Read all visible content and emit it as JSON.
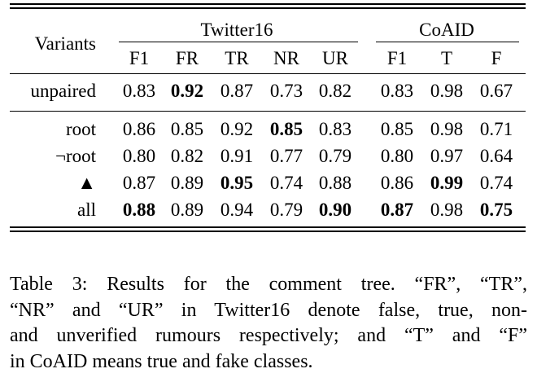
{
  "table": {
    "stub_header": "Variants",
    "groups": [
      {
        "name": "Twitter16",
        "columns": [
          "F1",
          "FR",
          "TR",
          "NR",
          "UR"
        ]
      },
      {
        "name": "CoAID",
        "columns": [
          "F1",
          "T",
          "F"
        ]
      }
    ],
    "sections": [
      [
        {
          "label": "unpaired",
          "values": [
            "0.83",
            "0.92",
            "0.87",
            "0.73",
            "0.82",
            "0.83",
            "0.98",
            "0.67"
          ],
          "bold": [
            false,
            true,
            false,
            false,
            false,
            false,
            false,
            false
          ]
        }
      ],
      [
        {
          "label": "root",
          "values": [
            "0.86",
            "0.85",
            "0.92",
            "0.85",
            "0.83",
            "0.85",
            "0.98",
            "0.71"
          ],
          "bold": [
            false,
            false,
            false,
            true,
            false,
            false,
            false,
            false
          ]
        },
        {
          "label": "¬root",
          "values": [
            "0.80",
            "0.82",
            "0.91",
            "0.77",
            "0.79",
            "0.80",
            "0.97",
            "0.64"
          ],
          "bold": [
            false,
            false,
            false,
            false,
            false,
            false,
            false,
            false
          ]
        },
        {
          "label": "▲",
          "values": [
            "0.87",
            "0.89",
            "0.95",
            "0.74",
            "0.88",
            "0.86",
            "0.99",
            "0.74"
          ],
          "bold": [
            false,
            false,
            true,
            false,
            false,
            false,
            true,
            false
          ]
        },
        {
          "label": "all",
          "values": [
            "0.88",
            "0.89",
            "0.94",
            "0.79",
            "0.90",
            "0.87",
            "0.98",
            "0.75"
          ],
          "bold": [
            true,
            false,
            false,
            false,
            true,
            true,
            false,
            true
          ]
        }
      ]
    ]
  },
  "caption": [
    "Table 3:  Results for the comment tree. “FR”, “TR”,",
    "“NR” and “UR” in Twitter16 denote false, true, non-",
    "and unverified rumours respectively; and “T” and “F”",
    "in CoAID means true and fake classes."
  ]
}
